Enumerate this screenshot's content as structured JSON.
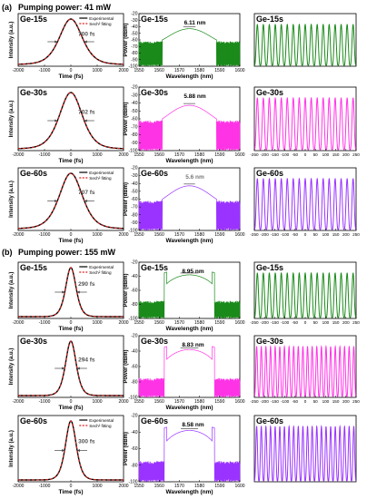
{
  "section_a": {
    "label": "(a)",
    "title": "Pumping power: 41 mW"
  },
  "section_b": {
    "label": "(b)",
    "title": "Pumping power: 155 mW"
  },
  "colors": {
    "green": "#1a8a1a",
    "magenta": "#ff33e6",
    "purple": "#9a33ff",
    "fit": "#e0201a",
    "trace": "#000000"
  },
  "chart_data": [
    {
      "type": "line",
      "panel": "a-autocorrelation-ge15",
      "series_tag": "Ge-15s",
      "annotation": "700 fs",
      "xlabel": "Time (fs)",
      "ylabel": "Intensity (a.u.)",
      "xlim": [
        -2000,
        2000
      ],
      "xticks": [
        "-2000",
        "-1000",
        "0",
        "1000",
        "2000"
      ],
      "legend": [
        "Experimental",
        "Sech² fitting"
      ],
      "fwhm_fs": 700
    },
    {
      "type": "line",
      "panel": "a-spectrum-ge15",
      "series_tag": "Ge-15s",
      "annotation": "6.11 nm",
      "xlabel": "Wavelength (nm)",
      "ylabel": "Power (dBm)",
      "xlim": [
        1550,
        1600
      ],
      "ylim": [
        -100,
        -20
      ],
      "xticks": [
        "1550",
        "1560",
        "1570",
        "1580",
        "1590",
        "1600"
      ],
      "yticks": [
        "-100",
        "-90",
        "-80",
        "-70",
        "-60",
        "-50",
        "-40",
        "-30",
        "-20"
      ],
      "bandwidth_nm": 6.11,
      "color": "green"
    },
    {
      "type": "line",
      "panel": "a-pulsetrain-ge15",
      "series_tag": "Ge-15s",
      "xlim": [
        -250,
        250
      ],
      "color": "green",
      "pulses": 17
    },
    {
      "type": "line",
      "panel": "a-autocorrelation-ge30",
      "series_tag": "Ge-30s",
      "annotation": "702 fs",
      "xlabel": "Time (fs)",
      "ylabel": "Intensity (a.u.)",
      "xlim": [
        -2000,
        2000
      ],
      "xticks": [
        "-2000",
        "-1000",
        "0",
        "1000",
        "2000"
      ],
      "fwhm_fs": 702
    },
    {
      "type": "line",
      "panel": "a-spectrum-ge30",
      "series_tag": "Ge-30s",
      "annotation": "5.88 nm",
      "xlabel": "Wavelength (nm)",
      "ylabel": "Power (dBm)",
      "xlim": [
        1550,
        1600
      ],
      "ylim": [
        -100,
        -20
      ],
      "xticks": [
        "1550",
        "1560",
        "1570",
        "1580",
        "1590",
        "1600"
      ],
      "yticks": [
        "-100",
        "-90",
        "-80",
        "-70",
        "-60",
        "-50",
        "-40",
        "-30",
        "-20"
      ],
      "bandwidth_nm": 5.88,
      "color": "magenta"
    },
    {
      "type": "line",
      "panel": "a-pulsetrain-ge30",
      "series_tag": "Ge-30s",
      "xlim": [
        -250,
        250
      ],
      "xticks": [
        "-250",
        "-200",
        "-150",
        "-100",
        "-50",
        "0",
        "50",
        "100",
        "150",
        "200",
        "250"
      ],
      "color": "magenta",
      "pulses": 17
    },
    {
      "type": "line",
      "panel": "a-autocorrelation-ge60",
      "series_tag": "Ge-60s",
      "annotation": "707 fs",
      "xlabel": "Time (fs)",
      "ylabel": "Intensity (a.u.)",
      "xlim": [
        -2000,
        2000
      ],
      "xticks": [
        "-2000",
        "-1000",
        "0",
        "1000",
        "2000"
      ],
      "legend": [
        "Experimental",
        "Sech² fitting"
      ],
      "fwhm_fs": 707
    },
    {
      "type": "line",
      "panel": "a-spectrum-ge60",
      "series_tag": "Ge-60s",
      "annotation": "5.6 nm",
      "xlabel": "Wavelength (nm)",
      "ylabel": "Power (dBm)",
      "xlim": [
        1550,
        1600
      ],
      "ylim": [
        -100,
        -20
      ],
      "xticks": [
        "1550",
        "1560",
        "1570",
        "1580",
        "1590",
        "1600"
      ],
      "yticks": [
        "-100",
        "-90",
        "-80",
        "-70",
        "-60",
        "-50",
        "-40",
        "-30",
        "-20"
      ],
      "bandwidth_nm": 5.6,
      "color": "purple"
    },
    {
      "type": "line",
      "panel": "a-pulsetrain-ge60",
      "series_tag": "Ge-60s",
      "xlim": [
        -250,
        250
      ],
      "xticks": [
        "-250",
        "-200",
        "-150",
        "-100",
        "-50",
        "0",
        "50",
        "100",
        "150",
        "200",
        "250"
      ],
      "color": "purple",
      "pulses": 17
    },
    {
      "type": "line",
      "panel": "b-autocorrelation-ge15",
      "series_tag": "Ge-15s",
      "annotation": "290 fs",
      "xlabel": "Time (fs)",
      "ylabel": "Intensity (a.u.)",
      "xlim": [
        -2000,
        2000
      ],
      "xticks": [
        "-2000",
        "-1000",
        "0",
        "1000",
        "2000"
      ],
      "legend": [
        "Experimental",
        "Sech² fitting"
      ],
      "fwhm_fs": 290
    },
    {
      "type": "line",
      "panel": "b-spectrum-ge15",
      "series_tag": "Ge-15s",
      "annotation": "8.95 nm",
      "xlabel": "Wavelength (nm)",
      "ylabel": "Power (dBm)",
      "xlim": [
        1550,
        1600
      ],
      "ylim": [
        -100,
        -20
      ],
      "xticks": [
        "1550",
        "1560",
        "1570",
        "1580",
        "1590",
        "1600"
      ],
      "yticks": [
        "-100",
        "-80",
        "-60",
        "-40",
        "-20"
      ],
      "bandwidth_nm": 8.95,
      "color": "green"
    },
    {
      "type": "line",
      "panel": "b-pulsetrain-ge15",
      "series_tag": "Ge-15s",
      "xlim": [
        -250,
        250
      ],
      "xticks": [
        "-250",
        "-200",
        "-150",
        "-100",
        "-50",
        "0",
        "50",
        "100",
        "150",
        "200",
        "250"
      ],
      "color": "green",
      "pulses": 17
    },
    {
      "type": "line",
      "panel": "b-autocorrelation-ge30",
      "series_tag": "Ge-30s",
      "annotation": "294 fs",
      "xlabel": "Time (fs)",
      "ylabel": "Intensity (a.u.)",
      "xlim": [
        -2000,
        2000
      ],
      "xticks": [
        "-2000",
        "-1000",
        "0",
        "1000",
        "2000"
      ],
      "fwhm_fs": 294
    },
    {
      "type": "line",
      "panel": "b-spectrum-ge30",
      "series_tag": "Ge-30s",
      "annotation": "8.83 nm",
      "xlabel": "Wavelength (nm)",
      "ylabel": "Power (dBm)",
      "xlim": [
        1550,
        1600
      ],
      "ylim": [
        -100,
        -20
      ],
      "xticks": [
        "1550",
        "1560",
        "1570",
        "1580",
        "1590",
        "1600"
      ],
      "yticks": [
        "-100",
        "-80",
        "-60",
        "-40",
        "-20"
      ],
      "bandwidth_nm": 8.83,
      "color": "magenta"
    },
    {
      "type": "line",
      "panel": "b-pulsetrain-ge30",
      "series_tag": "Ge-30s",
      "xlim": [
        -250,
        250
      ],
      "xticks": [
        "-250",
        "-200",
        "-150",
        "-100",
        "-50",
        "0",
        "50",
        "100",
        "150",
        "200",
        "250"
      ],
      "color": "magenta",
      "pulses": 22
    },
    {
      "type": "line",
      "panel": "b-autocorrelation-ge60",
      "series_tag": "Ge-60s",
      "annotation": "300 fs",
      "xlabel": "Time (fs)",
      "ylabel": "Intensity (a.u.)",
      "xlim": [
        -2000,
        2000
      ],
      "xticks": [
        "-2000",
        "-1000",
        "0",
        "1000",
        "2000"
      ],
      "legend": [
        "Experimental",
        "Sech² fitting"
      ],
      "fwhm_fs": 300
    },
    {
      "type": "line",
      "panel": "b-spectrum-ge60",
      "series_tag": "Ge-60s",
      "annotation": "8.58 nm",
      "xlabel": "Wavelength (nm)",
      "ylabel": "Power (dBm)",
      "xlim": [
        1550,
        1600
      ],
      "ylim": [
        -100,
        -20
      ],
      "xticks": [
        "1550",
        "1560",
        "1570",
        "1580",
        "1590",
        "1600"
      ],
      "yticks": [
        "-100",
        "-80",
        "-60",
        "-40",
        "-20"
      ],
      "bandwidth_nm": 8.58,
      "color": "purple"
    },
    {
      "type": "line",
      "panel": "b-pulsetrain-ge60",
      "series_tag": "Ge-60s",
      "xlim": [
        -250,
        250
      ],
      "color": "purple",
      "pulses": 22
    }
  ]
}
